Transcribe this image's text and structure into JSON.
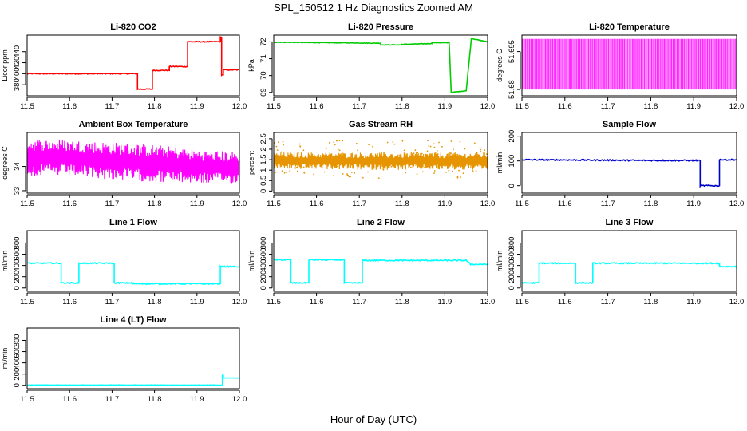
{
  "figure": {
    "title": "SPL_150512  1 Hz Diagnostics Zoomed AM",
    "xlabel": "Hour of Day (UTC)"
  },
  "chart_data": [
    {
      "type": "line",
      "title": "Li-820 CO2",
      "ylabel": "Licor ppm",
      "color": "#ff0000",
      "xlim": [
        11.5,
        12.0
      ],
      "ylim": [
        360,
        470
      ],
      "xticks": [
        11.5,
        11.6,
        11.7,
        11.8,
        11.9,
        12.0
      ],
      "yticks": [
        380,
        400,
        420,
        440
      ],
      "series": [
        {
          "name": "CO2",
          "style": "line",
          "x": [
            11.5,
            11.76,
            11.76,
            11.795,
            11.795,
            11.835,
            11.835,
            11.878,
            11.878,
            11.955,
            11.955,
            11.958,
            11.958,
            11.962,
            11.962,
            12.0
          ],
          "y": [
            400,
            400,
            372,
            372,
            406,
            406,
            413,
            413,
            458,
            458,
            466,
            466,
            398,
            398,
            407,
            407
          ],
          "noise": 0.8
        }
      ]
    },
    {
      "type": "line",
      "title": "Li-820 Pressure",
      "ylabel": "kPa",
      "color": "#00cc00",
      "xlim": [
        11.5,
        12.0
      ],
      "ylim": [
        68.8,
        72.4
      ],
      "xticks": [
        11.5,
        11.6,
        11.7,
        11.8,
        11.9,
        12.0
      ],
      "yticks": [
        69,
        70,
        71,
        72
      ],
      "series": [
        {
          "name": "Pressure",
          "style": "line",
          "x": [
            11.5,
            11.75,
            11.75,
            11.8,
            11.8,
            11.87,
            11.87,
            11.91,
            11.91,
            11.915,
            11.915,
            11.95,
            11.95,
            11.962,
            11.962,
            12.0
          ],
          "y": [
            71.98,
            71.92,
            71.82,
            71.82,
            71.85,
            71.9,
            71.96,
            71.94,
            71.94,
            69.0,
            69.0,
            69.1,
            69.1,
            72.2,
            72.2,
            72.0
          ],
          "noise": 0.015
        }
      ]
    },
    {
      "type": "line",
      "title": "Li-820 Temperature",
      "ylabel": "degrees C",
      "color": "#ff00ff",
      "xlim": [
        11.5,
        12.0
      ],
      "ylim": [
        51.6775,
        51.7015
      ],
      "xticks": [
        11.5,
        11.6,
        11.7,
        11.8,
        11.9,
        12.0
      ],
      "yticks": [
        51.68,
        51.695
      ],
      "series": [
        {
          "name": "Temperature",
          "style": "alternating",
          "x": [
            11.5,
            12.0
          ],
          "y": [
            51.68,
            51.7
          ]
        }
      ]
    },
    {
      "type": "line",
      "title": "Ambient Box Temperature",
      "ylabel": "degrees C",
      "color": "#ff00ff",
      "xlim": [
        11.5,
        12.0
      ],
      "ylim": [
        32.9,
        35.4
      ],
      "xticks": [
        11.5,
        11.6,
        11.7,
        11.8,
        11.9,
        12.0
      ],
      "yticks": [
        33.0,
        34.0
      ],
      "series": [
        {
          "name": "Ambient Box Temperature",
          "style": "band",
          "x": [
            11.5,
            11.6,
            11.7,
            11.8,
            11.9,
            12.0
          ],
          "ymin": [
            33.6,
            33.6,
            33.45,
            33.35,
            33.3,
            33.3
          ],
          "ymax": [
            35.15,
            35.1,
            35.0,
            34.9,
            34.7,
            34.6
          ]
        }
      ]
    },
    {
      "type": "scatter",
      "title": "Gas Stream RH",
      "ylabel": "percent",
      "color": "#e69500",
      "xlim": [
        11.5,
        12.0
      ],
      "ylim": [
        -0.1,
        2.8
      ],
      "xticks": [
        11.5,
        11.6,
        11.7,
        11.8,
        11.9,
        12.0
      ],
      "yticks": [
        0.0,
        0.5,
        1.0,
        1.5,
        2.0,
        2.5
      ],
      "series": [
        {
          "name": "RH",
          "style": "band",
          "x": [
            11.5,
            11.6,
            11.7,
            11.8,
            11.9,
            12.0
          ],
          "ymin": [
            1.05,
            1.05,
            1.0,
            1.0,
            1.0,
            1.0
          ],
          "ymax": [
            1.85,
            1.85,
            1.85,
            1.85,
            1.85,
            1.85
          ]
        }
      ]
    },
    {
      "type": "line",
      "title": "Sample Flow",
      "ylabel": "ml/min",
      "color": "#0000cc",
      "xlim": [
        11.5,
        12.0
      ],
      "ylim": [
        -30,
        215
      ],
      "xticks": [
        11.5,
        11.6,
        11.7,
        11.8,
        11.9,
        12.0
      ],
      "yticks": [
        0,
        100,
        200
      ],
      "series": [
        {
          "name": "Sample Flow",
          "style": "line",
          "x": [
            11.5,
            11.8,
            11.915,
            11.915,
            11.96,
            11.96,
            12.0
          ],
          "y": [
            105,
            102,
            102,
            0,
            0,
            105,
            105
          ],
          "noise": 2.5
        }
      ]
    },
    {
      "type": "line",
      "title": "Line 1 Flow",
      "ylabel": "ml/min",
      "color": "#00ffff",
      "xlim": [
        11.5,
        12.0
      ],
      "ylim": [
        -60,
        1020
      ],
      "xticks": [
        11.5,
        11.6,
        11.7,
        11.8,
        11.9,
        12.0
      ],
      "yticks": [
        0,
        200,
        400,
        600,
        800
      ],
      "series": [
        {
          "name": "Line 1 Flow",
          "style": "line",
          "x": [
            11.5,
            11.58,
            11.58,
            11.622,
            11.622,
            11.705,
            11.705,
            11.75,
            11.75,
            11.955,
            11.955,
            12.0
          ],
          "y": [
            440,
            440,
            90,
            90,
            440,
            440,
            90,
            90,
            75,
            75,
            380,
            380
          ],
          "noise": 10
        }
      ]
    },
    {
      "type": "line",
      "title": "Line 2 Flow",
      "ylabel": "ml/min",
      "color": "#00ffff",
      "xlim": [
        11.5,
        12.0
      ],
      "ylim": [
        -60,
        1020
      ],
      "xticks": [
        11.5,
        11.6,
        11.7,
        11.8,
        11.9,
        12.0
      ],
      "yticks": [
        0,
        200,
        400,
        600,
        800
      ],
      "series": [
        {
          "name": "Line 2 Flow",
          "style": "line",
          "x": [
            11.5,
            11.54,
            11.54,
            11.582,
            11.582,
            11.665,
            11.665,
            11.707,
            11.707,
            11.95,
            11.96,
            12.0
          ],
          "y": [
            500,
            500,
            90,
            90,
            500,
            500,
            90,
            90,
            490,
            490,
            420,
            420
          ],
          "noise": 10
        }
      ]
    },
    {
      "type": "line",
      "title": "Line 3 Flow",
      "ylabel": "ml/min",
      "color": "#00ffff",
      "xlim": [
        11.5,
        12.0
      ],
      "ylim": [
        -60,
        1020
      ],
      "xticks": [
        11.5,
        11.6,
        11.7,
        11.8,
        11.9,
        12.0
      ],
      "yticks": [
        0,
        200,
        400,
        600,
        800
      ],
      "series": [
        {
          "name": "Line 3 Flow",
          "style": "line",
          "x": [
            11.5,
            11.54,
            11.54,
            11.625,
            11.625,
            11.665,
            11.665,
            11.96,
            11.96,
            12.0
          ],
          "y": [
            90,
            90,
            440,
            440,
            90,
            90,
            440,
            440,
            380,
            380
          ],
          "noise": 10
        }
      ]
    },
    {
      "type": "line",
      "title": "Line 4 (LT) Flow",
      "ylabel": "ml/min",
      "color": "#00ffff",
      "xlim": [
        11.5,
        12.0
      ],
      "ylim": [
        -60,
        1020
      ],
      "xticks": [
        11.5,
        11.6,
        11.7,
        11.8,
        11.9,
        12.0
      ],
      "yticks": [
        0,
        200,
        400,
        600,
        800
      ],
      "series": [
        {
          "name": "Line 4 (LT) Flow",
          "style": "line",
          "x": [
            11.5,
            11.96,
            11.96,
            11.962,
            11.962,
            12.0
          ],
          "y": [
            5,
            5,
            180,
            180,
            130,
            130
          ],
          "noise": 3
        }
      ]
    }
  ]
}
